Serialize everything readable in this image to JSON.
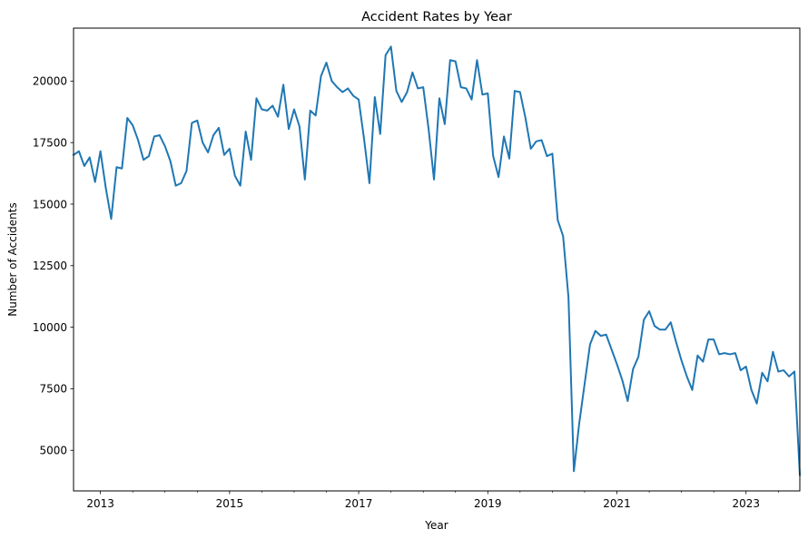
{
  "chart_data": {
    "type": "line",
    "title": "Accident Rates by Year",
    "xlabel": "Year",
    "ylabel": "Number of Accidents",
    "x_range": [
      "2012-08",
      "2023-11"
    ],
    "ylim": [
      3350,
      22150
    ],
    "x_major_ticks": [
      "2013",
      "2015",
      "2017",
      "2019",
      "2021",
      "2023"
    ],
    "y_ticks": [
      5000,
      7500,
      10000,
      12500,
      15000,
      17500,
      20000
    ],
    "grid": false,
    "legend": "none",
    "series": [
      {
        "color": "#1f77b4",
        "x": [
          "2012-08",
          "2012-09",
          "2012-10",
          "2012-11",
          "2012-12",
          "2013-01",
          "2013-02",
          "2013-03",
          "2013-04",
          "2013-05",
          "2013-06",
          "2013-07",
          "2013-08",
          "2013-09",
          "2013-10",
          "2013-11",
          "2013-12",
          "2014-01",
          "2014-02",
          "2014-03",
          "2014-04",
          "2014-05",
          "2014-06",
          "2014-07",
          "2014-08",
          "2014-09",
          "2014-10",
          "2014-11",
          "2014-12",
          "2015-01",
          "2015-02",
          "2015-03",
          "2015-04",
          "2015-05",
          "2015-06",
          "2015-07",
          "2015-08",
          "2015-09",
          "2015-10",
          "2015-11",
          "2015-12",
          "2016-01",
          "2016-02",
          "2016-03",
          "2016-04",
          "2016-05",
          "2016-06",
          "2016-07",
          "2016-08",
          "2016-09",
          "2016-10",
          "2016-11",
          "2016-12",
          "2017-01",
          "2017-02",
          "2017-03",
          "2017-04",
          "2017-05",
          "2017-06",
          "2017-07",
          "2017-08",
          "2017-09",
          "2017-10",
          "2017-11",
          "2017-12",
          "2018-01",
          "2018-02",
          "2018-03",
          "2018-04",
          "2018-05",
          "2018-06",
          "2018-07",
          "2018-08",
          "2018-09",
          "2018-10",
          "2018-11",
          "2018-12",
          "2019-01",
          "2019-02",
          "2019-03",
          "2019-04",
          "2019-05",
          "2019-06",
          "2019-07",
          "2019-08",
          "2019-09",
          "2019-10",
          "2019-11",
          "2019-12",
          "2020-01",
          "2020-02",
          "2020-03",
          "2020-04",
          "2020-05",
          "2020-06",
          "2020-07",
          "2020-08",
          "2020-09",
          "2020-10",
          "2020-11",
          "2020-12",
          "2021-01",
          "2021-02",
          "2021-03",
          "2021-04",
          "2021-05",
          "2021-06",
          "2021-07",
          "2021-08",
          "2021-09",
          "2021-10",
          "2021-11",
          "2021-12",
          "2022-01",
          "2022-02",
          "2022-03",
          "2022-04",
          "2022-05",
          "2022-06",
          "2022-07",
          "2022-08",
          "2022-09",
          "2022-10",
          "2022-11",
          "2022-12",
          "2023-01",
          "2023-02",
          "2023-03",
          "2023-04",
          "2023-05",
          "2023-06",
          "2023-07",
          "2023-08",
          "2023-09",
          "2023-10",
          "2023-11"
        ],
        "y": [
          17000,
          17150,
          16550,
          16900,
          15900,
          17150,
          15650,
          14400,
          16500,
          16450,
          18500,
          18200,
          17600,
          16800,
          16950,
          17750,
          17800,
          17350,
          16750,
          15750,
          15850,
          16350,
          18300,
          18400,
          17500,
          17100,
          17800,
          18100,
          17000,
          17250,
          16150,
          15750,
          17950,
          16800,
          19300,
          18850,
          18800,
          19000,
          18550,
          19850,
          18050,
          18850,
          18150,
          16000,
          18800,
          18600,
          20200,
          20750,
          20000,
          19750,
          19550,
          19700,
          19400,
          19250,
          17650,
          15850,
          19350,
          17850,
          21050,
          21400,
          19600,
          19150,
          19550,
          20350,
          19700,
          19750,
          18050,
          16000,
          19300,
          18250,
          20850,
          20800,
          19750,
          19700,
          19250,
          20850,
          19450,
          19500,
          16950,
          16100,
          17750,
          16850,
          19600,
          19550,
          18500,
          17250,
          17550,
          17600,
          16950,
          17050,
          14350,
          13700,
          11200,
          4150,
          6100,
          7700,
          9300,
          9850,
          9650,
          9700,
          9100,
          8500,
          7850,
          7000,
          8300,
          8800,
          10300,
          10650,
          10050,
          9900,
          9900,
          10200,
          9400,
          8650,
          8000,
          7450,
          8850,
          8600,
          9500,
          9500,
          8900,
          8950,
          8900,
          8950,
          8250,
          8400,
          7450,
          6900,
          8150,
          7800,
          9000,
          8200,
          8250,
          8000,
          8200,
          4000
        ]
      }
    ]
  }
}
